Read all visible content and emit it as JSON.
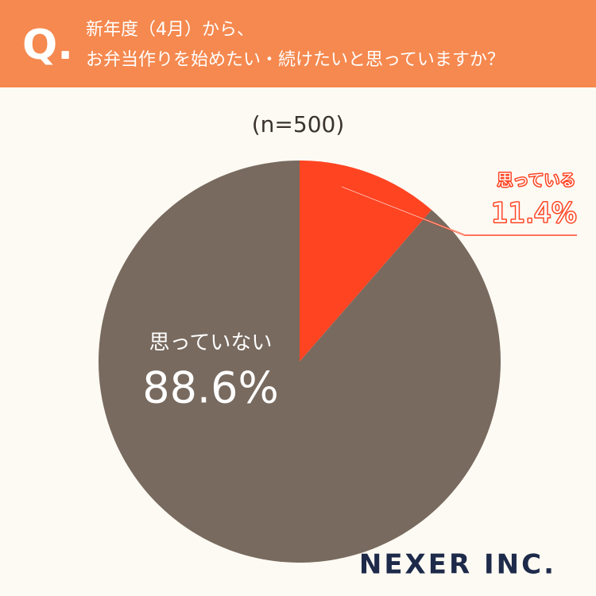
{
  "question_mark": "Q.",
  "logo": "NEXER INC.",
  "chart_data": {
    "type": "pie",
    "title": [
      "新年度（4月）から、",
      "お弁当作りを始めたい・続けたいと思っていますか？"
    ],
    "subtitle": "(n=500)",
    "categories": [
      "思っている",
      "思っていない"
    ],
    "values": [
      11.4,
      88.6
    ],
    "value_labels": [
      "11.4%",
      "88.6%"
    ],
    "colors": [
      "#ff4422",
      "#786a5f"
    ]
  }
}
